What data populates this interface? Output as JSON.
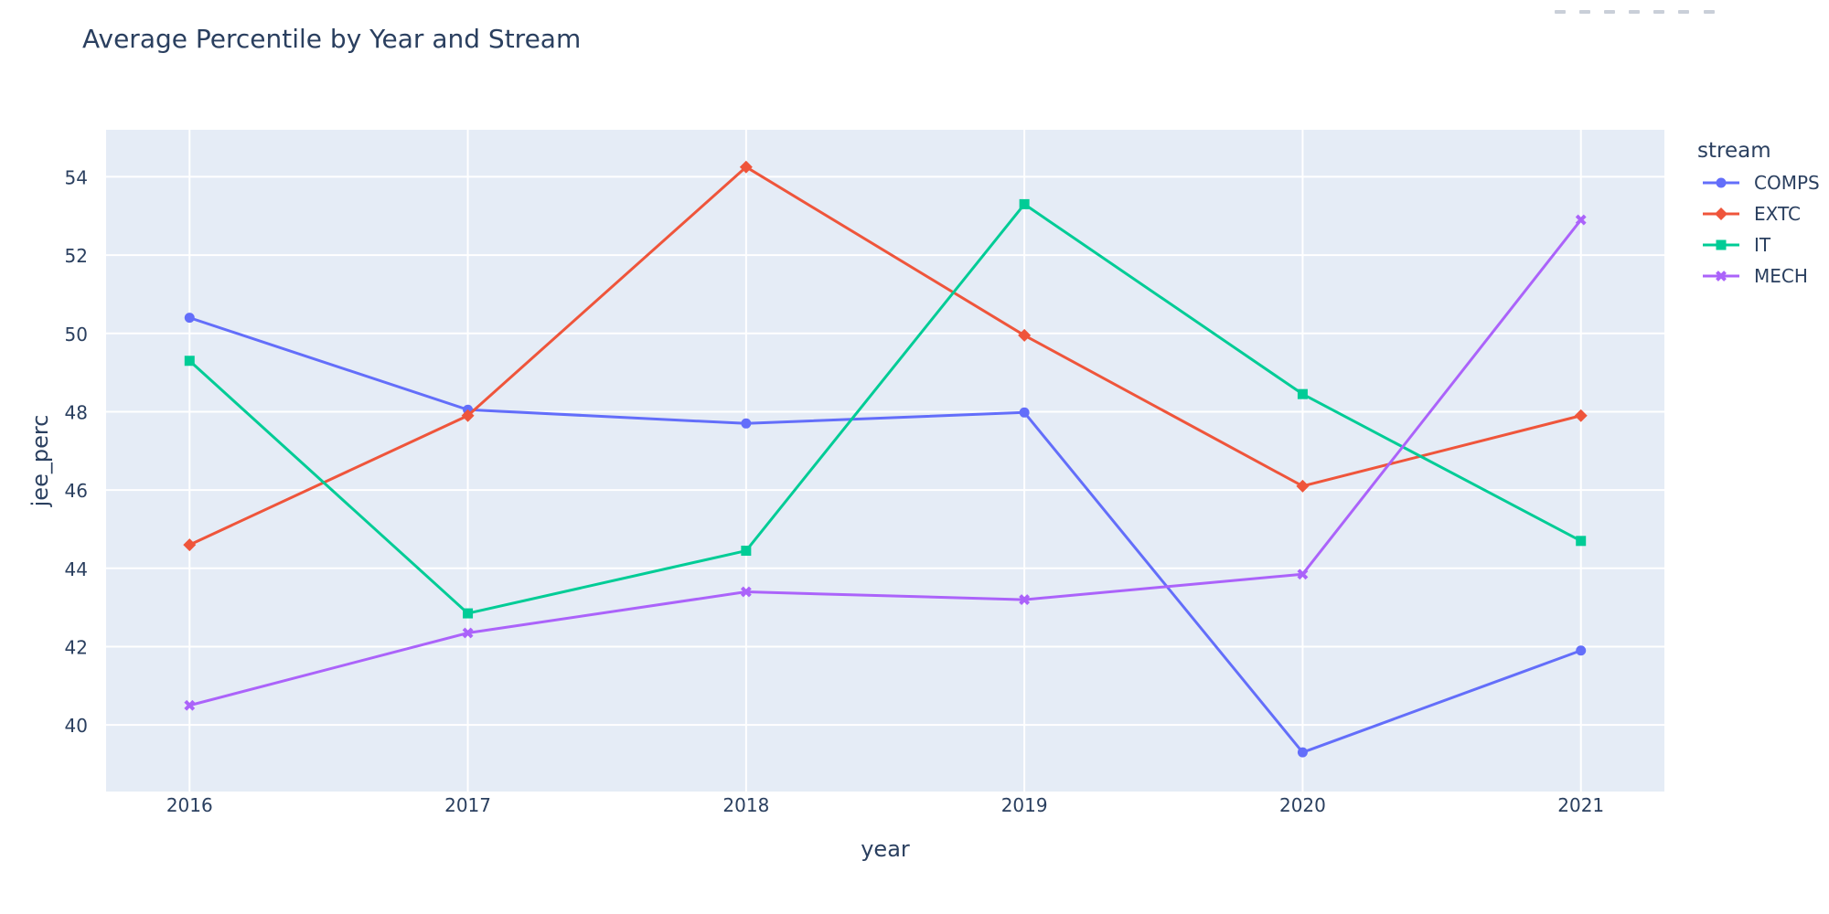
{
  "chart_data": {
    "type": "line",
    "title": "Average Percentile by Year and Stream",
    "xlabel": "year",
    "ylabel": "jee_perc",
    "x": [
      "2016",
      "2017",
      "2018",
      "2019",
      "2020",
      "2021"
    ],
    "xlim": [
      2015.7,
      2021.3
    ],
    "ylim": [
      38.3,
      55.2
    ],
    "yticks": [
      40,
      42,
      44,
      46,
      48,
      50,
      52,
      54
    ],
    "legend_title": "stream",
    "legend_position": "top-right",
    "grid": true,
    "plot_background": "#e5ecf6",
    "series": [
      {
        "name": "COMPS",
        "color": "#636efa",
        "marker": "circle",
        "values": [
          50.4,
          48.05,
          47.7,
          47.98,
          39.3,
          41.9
        ]
      },
      {
        "name": "EXTC",
        "color": "#ef553b",
        "marker": "diamond",
        "values": [
          44.6,
          47.9,
          54.25,
          49.95,
          46.1,
          47.9
        ]
      },
      {
        "name": "IT",
        "color": "#00cc96",
        "marker": "square",
        "values": [
          49.3,
          42.85,
          44.45,
          53.3,
          48.45,
          44.7
        ]
      },
      {
        "name": "MECH",
        "color": "#ab63fa",
        "marker": "x",
        "values": [
          40.5,
          42.35,
          43.4,
          43.2,
          43.85,
          52.9
        ]
      }
    ]
  }
}
